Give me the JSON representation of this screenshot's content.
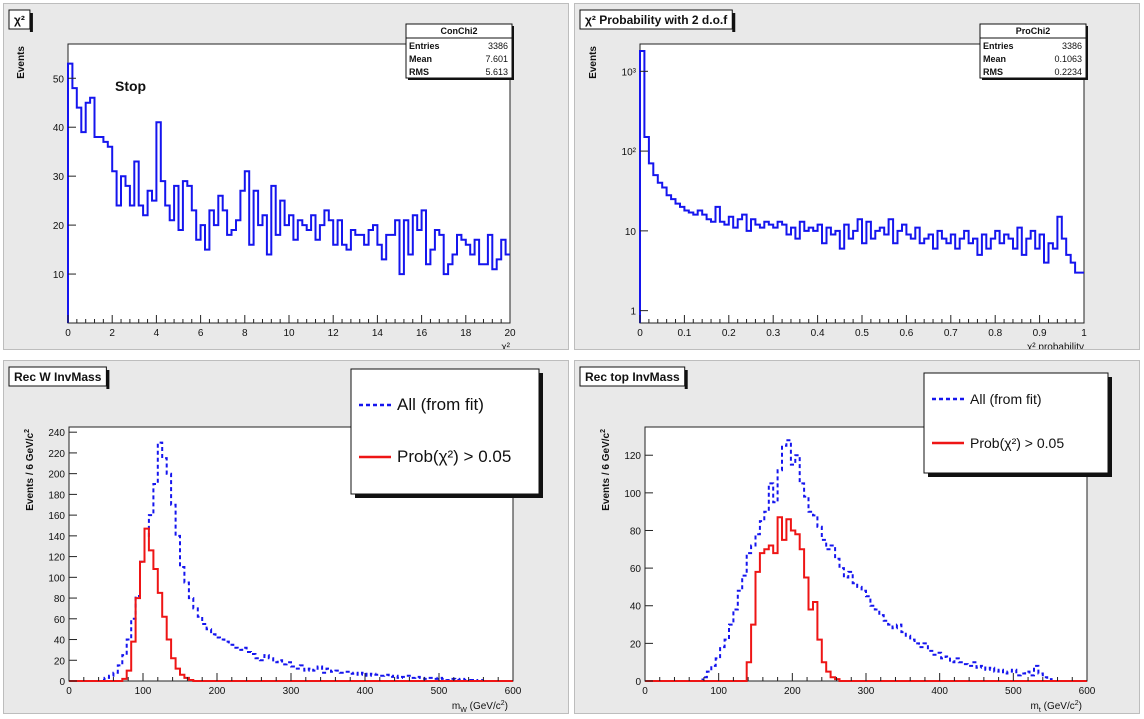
{
  "chart_data": [
    {
      "type": "histogram",
      "title": "χ²",
      "annotation": "Stop",
      "xlabel": "χ²",
      "ylabel": "Events",
      "xlim": [
        0,
        20
      ],
      "ylim": [
        0,
        57
      ],
      "xticks": [
        0,
        2,
        4,
        6,
        8,
        10,
        12,
        14,
        16,
        18,
        20
      ],
      "yticks": [
        10,
        20,
        30,
        40,
        50
      ],
      "stats": {
        "name": "ConChi2",
        "rows": [
          {
            "label": "Entries",
            "value": "3386"
          },
          {
            "label": "Mean",
            "value": "7.601"
          },
          {
            "label": "RMS",
            "value": "5.613"
          }
        ]
      },
      "series": [
        {
          "color": "#1515ee",
          "style": "solid",
          "bin_width": 0.2,
          "values": [
            53,
            48,
            44,
            39,
            45,
            46,
            38,
            38,
            37,
            36,
            31,
            24,
            30,
            28,
            24,
            33,
            24,
            22,
            27,
            25,
            41,
            29,
            24,
            21,
            28,
            19,
            29,
            28,
            23,
            17,
            20,
            15,
            23,
            20,
            26,
            23,
            18,
            19,
            21,
            27,
            31,
            16,
            27,
            20,
            22,
            14,
            28,
            18,
            25,
            20,
            22,
            17,
            21,
            20,
            19,
            22,
            17,
            20,
            23,
            21,
            16,
            21,
            16,
            15,
            19,
            18,
            18,
            16,
            19,
            20,
            16,
            13,
            18,
            18,
            21,
            10,
            21,
            14,
            22,
            19,
            23,
            12,
            15,
            19,
            18,
            10,
            12,
            14,
            18,
            17,
            16,
            14,
            17,
            12,
            12,
            18,
            11,
            13,
            17,
            14
          ]
        }
      ]
    },
    {
      "type": "histogram",
      "title": "χ² Probability with 2 d.o.f",
      "xlabel": "χ² probability",
      "ylabel": "Events",
      "xlim": [
        0,
        1
      ],
      "ylim": [
        0.7,
        2200
      ],
      "log_y": true,
      "xticks": [
        0,
        0.1,
        0.2,
        0.3,
        0.4,
        0.5,
        0.6,
        0.7,
        0.8,
        0.9,
        1
      ],
      "yticks": [
        1,
        10,
        100,
        1000
      ],
      "yticklabels": [
        "1",
        "10",
        "10²",
        "10³"
      ],
      "stats": {
        "name": "ProChi2",
        "rows": [
          {
            "label": "Entries",
            "value": "3386"
          },
          {
            "label": "Mean",
            "value": "0.1063"
          },
          {
            "label": "RMS",
            "value": "0.2234"
          }
        ]
      },
      "series": [
        {
          "color": "#1515ee",
          "style": "solid",
          "bin_width": 0.01,
          "values": [
            1800,
            150,
            70,
            50,
            40,
            35,
            28,
            25,
            22,
            20,
            18,
            17,
            16,
            18,
            16,
            14,
            13,
            20,
            13,
            12,
            15,
            11,
            14,
            16,
            10,
            14,
            12,
            11,
            13,
            12,
            11,
            13,
            12,
            9,
            11,
            8,
            13,
            10,
            11,
            10,
            12,
            7,
            11,
            9,
            10,
            6,
            12,
            8,
            10,
            14,
            7,
            13,
            8,
            10,
            11,
            9,
            14,
            7,
            10,
            12,
            9,
            8,
            11,
            7,
            8,
            9,
            6,
            10,
            8,
            7,
            9,
            6,
            8,
            10,
            7,
            8,
            5,
            9,
            6,
            8,
            10,
            7,
            9,
            8,
            6,
            11,
            5,
            8,
            10,
            6,
            9,
            4,
            7,
            6,
            15,
            8,
            5,
            4,
            3,
            3
          ]
        }
      ]
    },
    {
      "type": "histogram",
      "title": "Rec W InvMass",
      "xlabel_main": "m",
      "xlabel_sub": "W",
      "xlabel_rest": " (GeV/c",
      "xlabel_sup": "2",
      "xlabel_end": ")",
      "ylabel_main": "Events / 6 GeV/c",
      "ylabel_sup": "2",
      "xlim": [
        0,
        600
      ],
      "ylim": [
        0,
        245
      ],
      "xticks": [
        0,
        100,
        200,
        300,
        400,
        500,
        600
      ],
      "yticks": [
        0,
        20,
        40,
        60,
        80,
        100,
        120,
        140,
        160,
        180,
        200,
        220,
        240
      ],
      "legend": {
        "position": "top-right",
        "entries": [
          "All (from fit)",
          "Prob(χ²) > 0.05"
        ]
      },
      "series": [
        {
          "name": "All (from fit)",
          "color": "#1515ee",
          "style": "dashed",
          "bin_width": 6,
          "values": [
            0,
            0,
            0,
            0,
            0,
            0,
            0,
            1,
            3,
            5,
            8,
            15,
            25,
            40,
            60,
            82,
            115,
            140,
            160,
            190,
            230,
            215,
            200,
            170,
            140,
            110,
            95,
            80,
            70,
            62,
            55,
            50,
            45,
            42,
            40,
            38,
            35,
            32,
            30,
            32,
            28,
            26,
            22,
            20,
            25,
            22,
            18,
            20,
            16,
            18,
            14,
            12,
            15,
            10,
            12,
            10,
            14,
            8,
            12,
            9,
            10,
            8,
            9,
            7,
            8,
            6,
            8,
            5,
            7,
            6,
            5,
            6,
            4,
            5,
            3,
            4,
            5,
            3,
            4,
            3,
            2,
            3,
            2,
            3,
            2,
            1,
            2,
            1,
            2,
            1,
            1,
            0,
            1,
            0,
            0,
            0,
            0,
            0,
            0,
            0
          ]
        },
        {
          "name": "Prob(χ²) > 0.05",
          "color": "#ee1515",
          "style": "solid",
          "bin_width": 6,
          "values": [
            0,
            0,
            0,
            0,
            0,
            0,
            0,
            0,
            0,
            0,
            0,
            0,
            2,
            10,
            38,
            80,
            115,
            147,
            126,
            108,
            85,
            62,
            40,
            22,
            12,
            6,
            3,
            1,
            0,
            0,
            0,
            0,
            0,
            0,
            0,
            0,
            0,
            0,
            0,
            0,
            0,
            0,
            0,
            0,
            0,
            0,
            0,
            0,
            0,
            0,
            0,
            0,
            0,
            0,
            0,
            0,
            0,
            0,
            0,
            0,
            0,
            0,
            0,
            0,
            0,
            0,
            0,
            0,
            0,
            0,
            0,
            0,
            0,
            0,
            0,
            0,
            0,
            0,
            0,
            0,
            0,
            0,
            0,
            0,
            0,
            0,
            0,
            0,
            0,
            0,
            0,
            0,
            0,
            0,
            0,
            0,
            0,
            0,
            0,
            0
          ]
        }
      ]
    },
    {
      "type": "histogram",
      "title": "Rec top InvMass",
      "xlabel_main": "m",
      "xlabel_sub": "t",
      "xlabel_rest": " (GeV/c",
      "xlabel_sup": "2",
      "xlabel_end": ")",
      "ylabel_main": "Events / 6 GeV/c",
      "ylabel_sup": "2",
      "xlim": [
        0,
        600
      ],
      "ylim": [
        0,
        135
      ],
      "xticks": [
        0,
        100,
        200,
        300,
        400,
        500,
        600
      ],
      "yticks": [
        0,
        20,
        40,
        60,
        80,
        100,
        120
      ],
      "legend": {
        "position": "top-right",
        "entries": [
          "All (from fit)",
          "Prob(χ²) > 0.05"
        ]
      },
      "series": [
        {
          "name": "All (from fit)",
          "color": "#1515ee",
          "style": "dashed",
          "bin_width": 6,
          "values": [
            0,
            0,
            0,
            0,
            0,
            0,
            0,
            0,
            0,
            0,
            0,
            0,
            0,
            2,
            5,
            8,
            12,
            18,
            22,
            30,
            38,
            48,
            56,
            68,
            72,
            78,
            85,
            90,
            105,
            95,
            112,
            125,
            128,
            115,
            120,
            105,
            98,
            90,
            88,
            82,
            75,
            70,
            72,
            65,
            60,
            55,
            58,
            52,
            50,
            48,
            45,
            40,
            38,
            35,
            32,
            30,
            28,
            30,
            26,
            24,
            22,
            20,
            18,
            20,
            16,
            14,
            15,
            12,
            13,
            10,
            12,
            10,
            9,
            8,
            10,
            7,
            8,
            6,
            7,
            5,
            6,
            4,
            5,
            6,
            3,
            4,
            5,
            3,
            8,
            4,
            2,
            1,
            0,
            0,
            0,
            0,
            0,
            0,
            0,
            0
          ]
        },
        {
          "name": "Prob(χ²) > 0.05",
          "color": "#ee1515",
          "style": "solid",
          "bin_width": 6,
          "values": [
            0,
            0,
            0,
            0,
            0,
            0,
            0,
            0,
            0,
            0,
            0,
            0,
            0,
            0,
            0,
            0,
            0,
            0,
            0,
            0,
            0,
            0,
            0,
            10,
            30,
            58,
            68,
            70,
            72,
            68,
            87,
            75,
            86,
            80,
            78,
            70,
            55,
            38,
            42,
            22,
            10,
            5,
            2,
            1,
            0,
            0,
            0,
            0,
            0,
            0,
            0,
            0,
            0,
            0,
            0,
            0,
            0,
            0,
            0,
            0,
            0,
            0,
            0,
            0,
            0,
            0,
            0,
            0,
            0,
            0,
            0,
            0,
            0,
            0,
            0,
            0,
            0,
            0,
            0,
            0,
            0,
            0,
            0,
            0,
            0,
            0,
            0,
            0,
            0,
            0,
            0,
            0,
            0,
            0,
            0,
            0,
            0,
            0,
            0,
            0
          ]
        }
      ]
    }
  ]
}
